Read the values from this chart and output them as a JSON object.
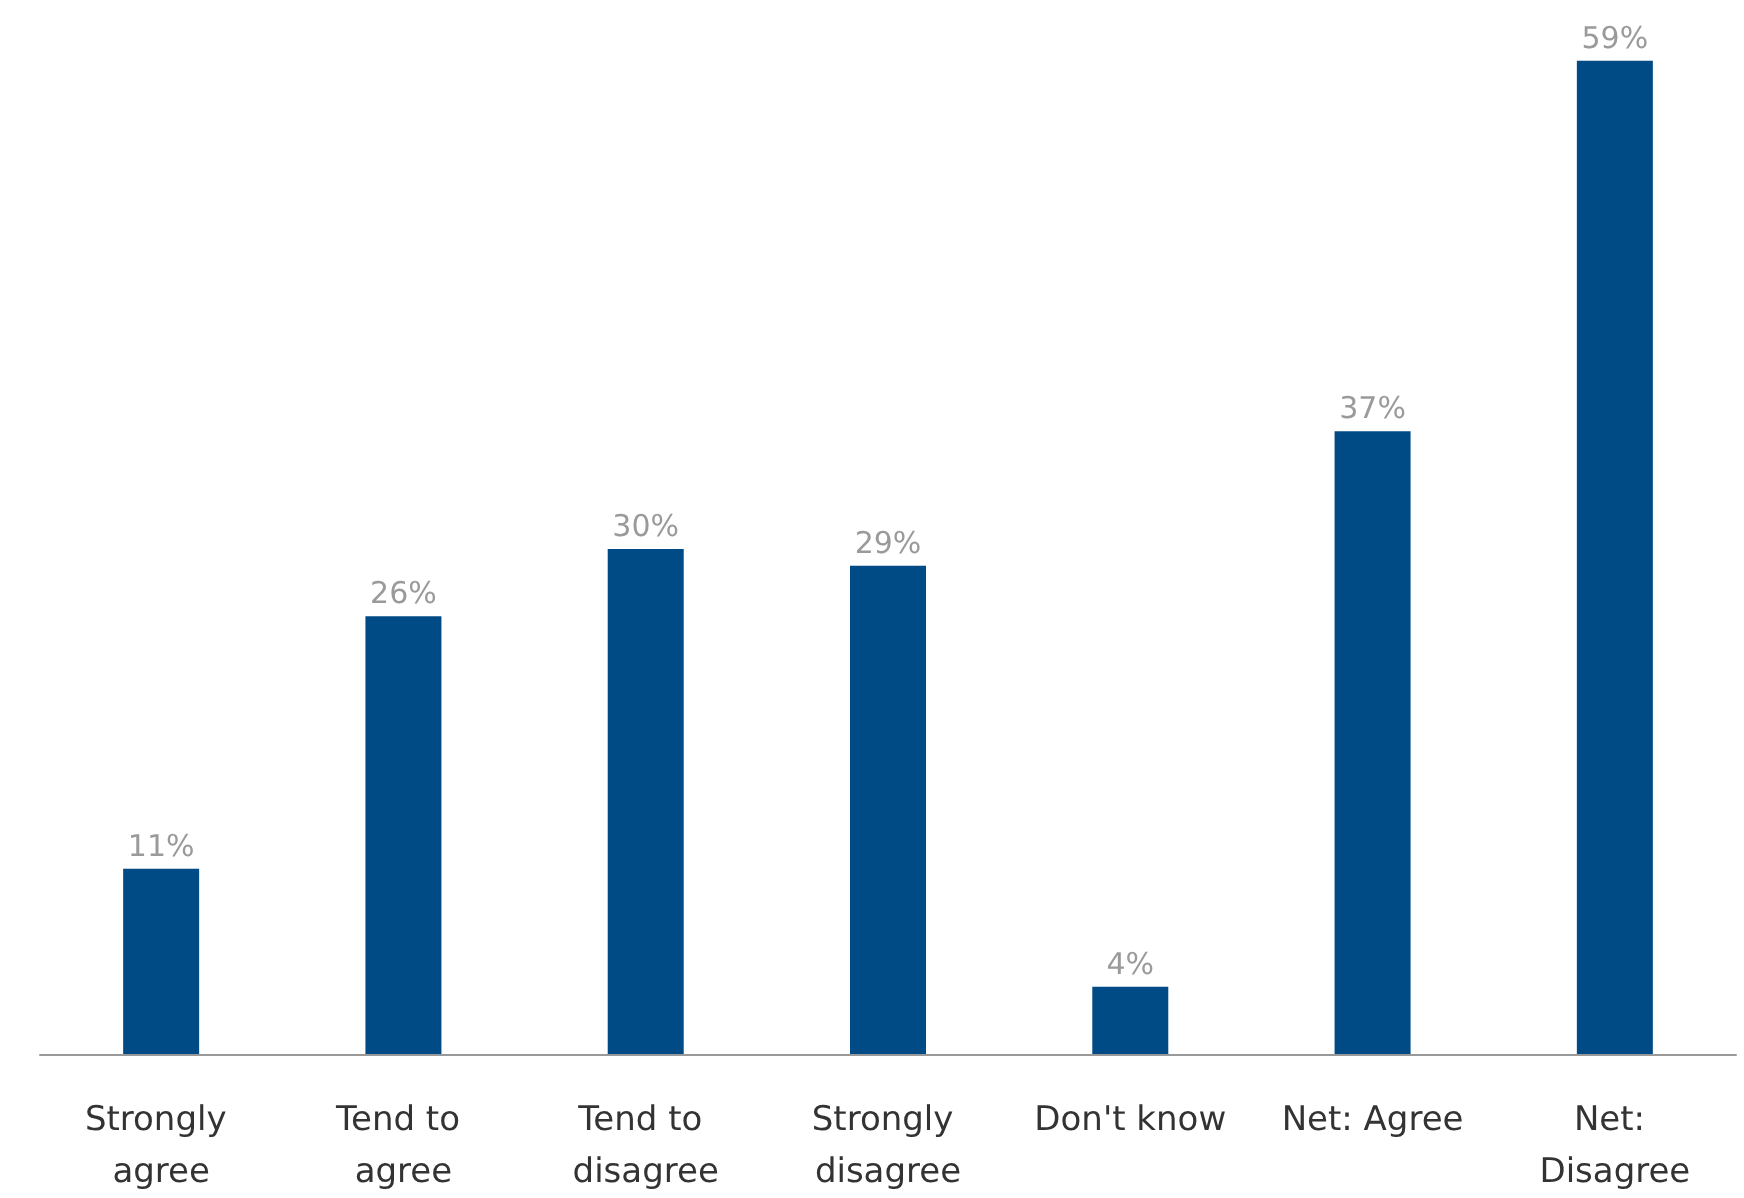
{
  "chart_data": {
    "type": "bar",
    "categories": [
      "Strongly agree",
      "Tend to agree",
      "Tend to disagree",
      "Strongly disagree",
      "Don't know",
      "Net: Agree",
      "Net: Disagree"
    ],
    "values": [
      11,
      26,
      30,
      29,
      4,
      37,
      59
    ],
    "value_labels": [
      "11%",
      "26%",
      "30%",
      "29%",
      "4%",
      "37%",
      "59%"
    ],
    "color": "#004a85",
    "tick_labels": "x"
  }
}
